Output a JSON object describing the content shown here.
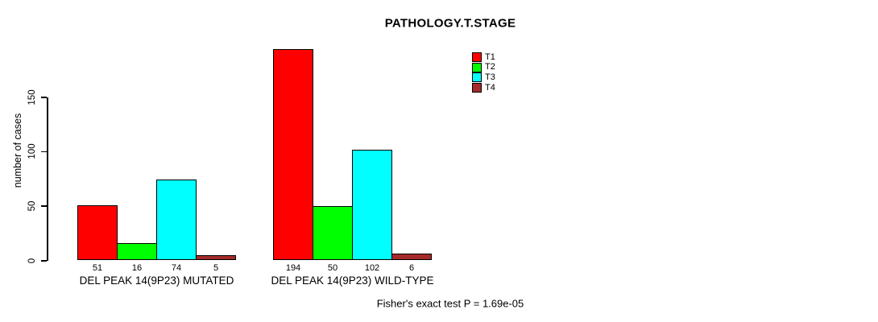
{
  "chart_data": {
    "type": "bar",
    "title": "PATHOLOGY.T.STAGE",
    "ylabel": "number of cases",
    "xlabel": "",
    "yticks": [
      0,
      50,
      100,
      150
    ],
    "ylim": [
      0,
      200
    ],
    "grid": false,
    "legend_position": "top-right",
    "show_bar_values": true,
    "series": [
      {
        "name": "T1",
        "color": "#ff0000"
      },
      {
        "name": "T2",
        "color": "#00ff00"
      },
      {
        "name": "T3",
        "color": "#00ffff"
      },
      {
        "name": "T4",
        "color": "#a52a2a"
      }
    ],
    "groups": [
      {
        "label": "DEL PEAK 14(9P23) MUTATED",
        "values": [
          51,
          16,
          74,
          5
        ]
      },
      {
        "label": "DEL PEAK 14(9P23) WILD-TYPE",
        "values": [
          194,
          50,
          102,
          6
        ]
      }
    ],
    "axis_color": "#000000",
    "bar_border_color": "#000000"
  },
  "annotation": {
    "stat_text": "Fisher's exact test P = 1.69e-05"
  }
}
